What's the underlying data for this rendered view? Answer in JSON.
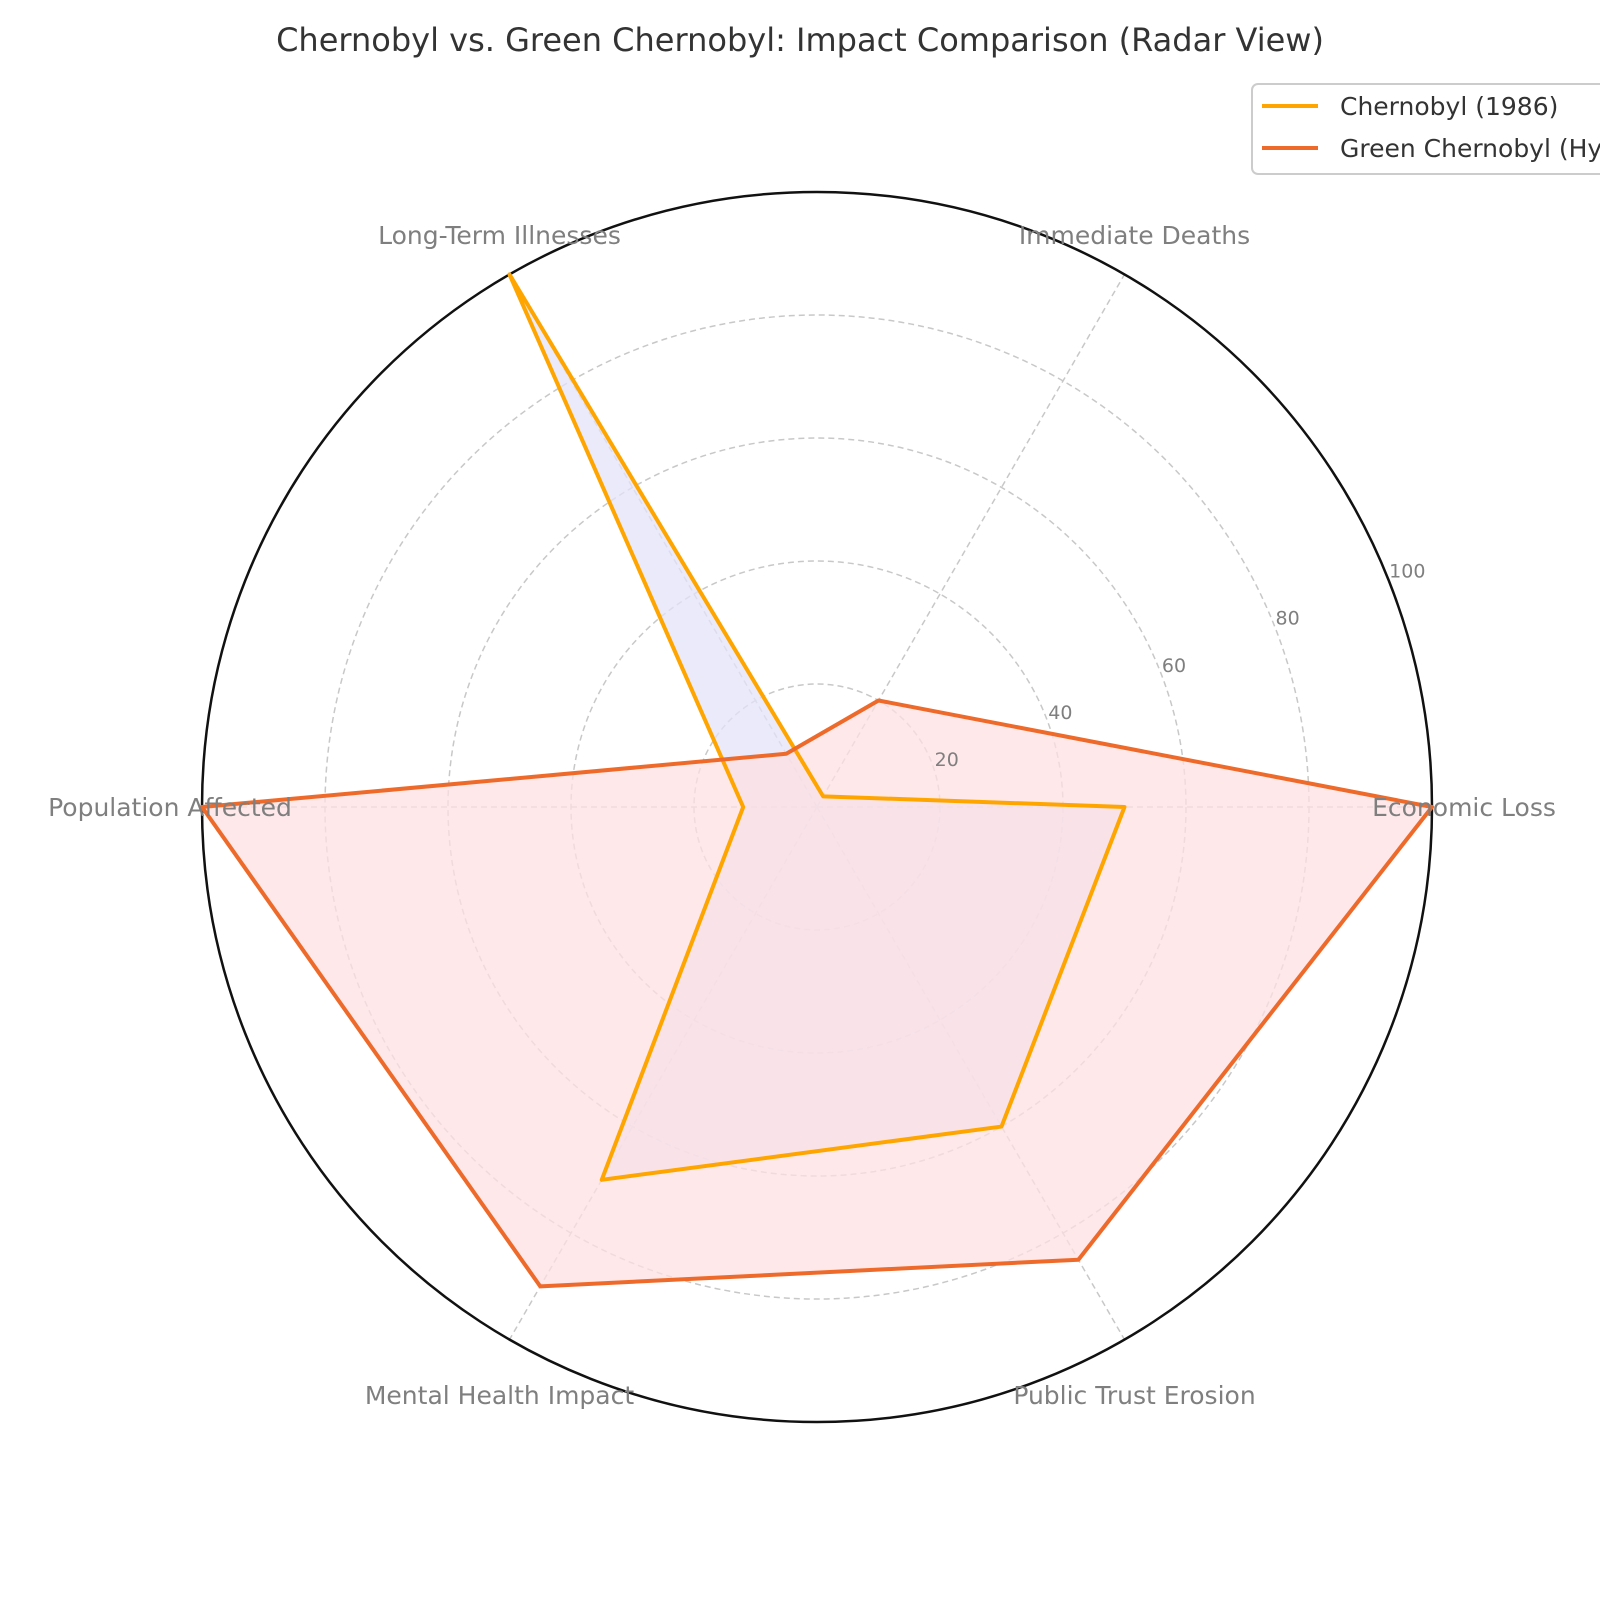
{
  "chart_data": {
    "type": "radar",
    "title": "Chernobyl vs. Green Chernobyl: Impact Comparison (Radar View)",
    "categories": [
      "Economic Loss",
      "Immediate Deaths",
      "Long-Term Illnesses",
      "Population Affected",
      "Mental Health Impact",
      "Public Trust Erosion"
    ],
    "rlim": [
      0,
      100
    ],
    "r_ticks": [
      20,
      40,
      60,
      80,
      100
    ],
    "grid": true,
    "legend_position": "top-right",
    "series": [
      {
        "name": "Chernobyl (1986)",
        "values": [
          50,
          2,
          100,
          12,
          70,
          60
        ],
        "line_color": "#FFA500",
        "fill_color": "#E3E3FA"
      },
      {
        "name": "Green Chernobyl (Hypothetical)",
        "values": [
          100,
          20,
          10,
          100,
          90,
          85
        ],
        "line_color": "#EE6A2A",
        "fill_color": "#FDE0E3"
      }
    ]
  }
}
